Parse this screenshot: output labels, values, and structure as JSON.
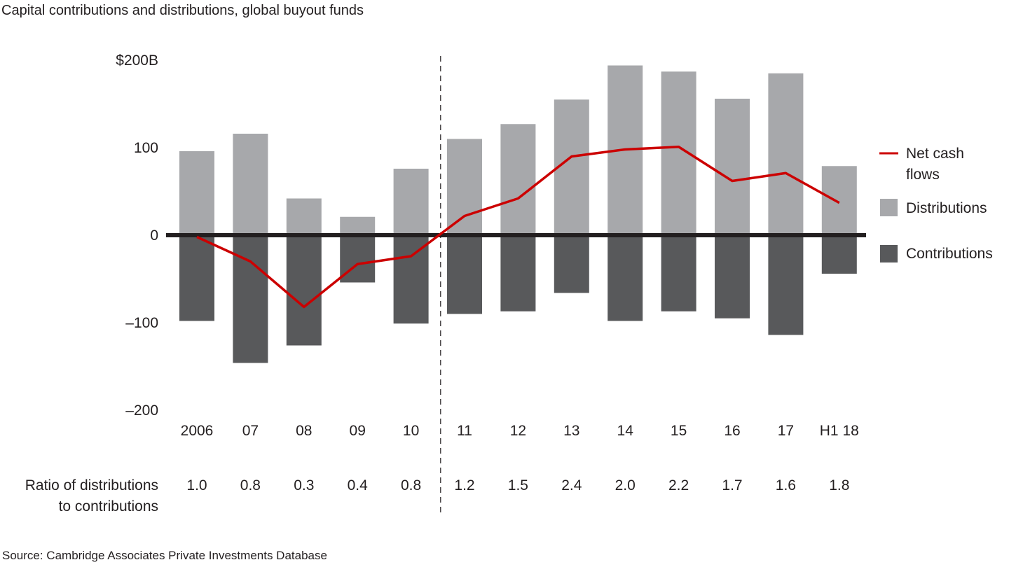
{
  "chart_data": {
    "type": "bar",
    "title": "Capital contributions and distributions, global buyout funds",
    "xlabel": "",
    "ylabel": "",
    "ylim": [
      -200,
      200
    ],
    "yticks": [
      {
        "value": 200,
        "label": "$200B"
      },
      {
        "value": 100,
        "label": "100"
      },
      {
        "value": 0,
        "label": "0"
      },
      {
        "value": -100,
        "label": "–100"
      },
      {
        "value": -200,
        "label": "–200"
      }
    ],
    "categories": [
      "2006",
      "07",
      "08",
      "09",
      "10",
      "11",
      "12",
      "13",
      "14",
      "15",
      "16",
      "17",
      "H1 18"
    ],
    "series": [
      {
        "name": "Distributions",
        "kind": "bar",
        "color": "#a7a8ab",
        "values": [
          96,
          116,
          42,
          21,
          76,
          110,
          127,
          155,
          194,
          187,
          156,
          185,
          79
        ]
      },
      {
        "name": "Contributions",
        "kind": "bar",
        "color": "#58595b",
        "values": [
          -98,
          -146,
          -126,
          -54,
          -101,
          -90,
          -87,
          -66,
          -98,
          -87,
          -95,
          -114,
          -44
        ]
      },
      {
        "name": "Net cash flows",
        "kind": "line",
        "color": "#cc0000",
        "values": [
          -2,
          -30,
          -82,
          -33,
          -24,
          22,
          42,
          90,
          98,
          101,
          62,
          71,
          37
        ]
      }
    ],
    "ratio_row": {
      "label_line1": "Ratio of distributions",
      "label_line2": "to contributions",
      "values": [
        "1.0",
        "0.8",
        "0.3",
        "0.4",
        "0.8",
        "1.2",
        "1.5",
        "2.4",
        "2.0",
        "2.2",
        "1.7",
        "1.6",
        "1.8"
      ]
    },
    "divider_after_category": "10",
    "legend": {
      "placement": "right",
      "items": [
        {
          "label_line1": "Net cash",
          "label_line2": "flows",
          "type": "line",
          "color": "#cc0000"
        },
        {
          "label_line1": "Distributions",
          "type": "square",
          "color": "#a7a8ab"
        },
        {
          "label_line1": "Contributions",
          "type": "square",
          "color": "#58595b"
        }
      ]
    },
    "grid": false,
    "zero_line_color": "#231f20"
  },
  "source": "Source: Cambridge Associates Private Investments Database"
}
